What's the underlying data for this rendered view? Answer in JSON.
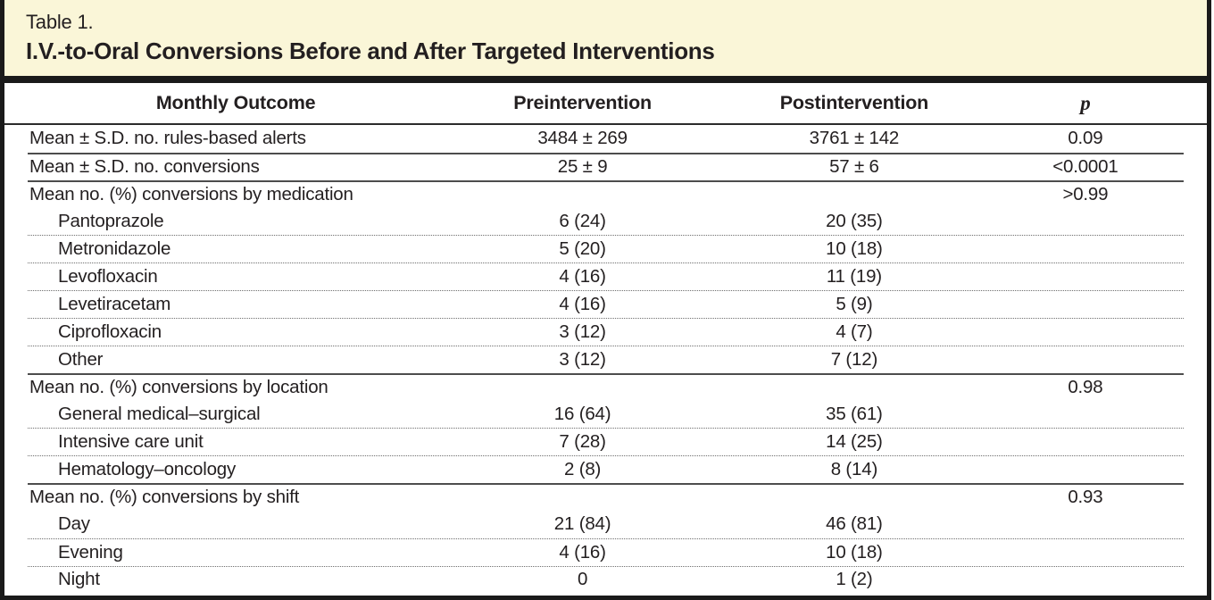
{
  "caption": {
    "label": "Table 1.",
    "title": "I.V.-to-Oral Conversions Before and After Targeted Interventions"
  },
  "columns": {
    "outcome": "Monthly Outcome",
    "pre": "Preintervention",
    "post": "Postintervention",
    "p": "p"
  },
  "rows": [
    {
      "outcome": "Mean ± S.D. no. rules-based alerts",
      "pre": "3484 ± 269",
      "post": "3761 ± 142",
      "p": "0.09",
      "indent": false,
      "sep": "none"
    },
    {
      "outcome": "Mean ± S.D. no. conversions",
      "pre": "25 ± 9",
      "post": "57 ± 6",
      "p": "<0.0001",
      "indent": false,
      "sep": "solid"
    },
    {
      "outcome": "Mean no. (%) conversions by medication",
      "pre": "",
      "post": "",
      "p": ">0.99",
      "indent": false,
      "sep": "solid"
    },
    {
      "outcome": "Pantoprazole",
      "pre": "6 (24)",
      "post": "20 (35)",
      "p": "",
      "indent": true,
      "sep": "none"
    },
    {
      "outcome": "Metronidazole",
      "pre": "5 (20)",
      "post": "10 (18)",
      "p": "",
      "indent": true,
      "sep": "dotted"
    },
    {
      "outcome": "Levofloxacin",
      "pre": "4 (16)",
      "post": "11 (19)",
      "p": "",
      "indent": true,
      "sep": "dotted"
    },
    {
      "outcome": "Levetiracetam",
      "pre": "4 (16)",
      "post": "5 (9)",
      "p": "",
      "indent": true,
      "sep": "dotted"
    },
    {
      "outcome": "Ciprofloxacin",
      "pre": "3 (12)",
      "post": "4 (7)",
      "p": "",
      "indent": true,
      "sep": "dotted"
    },
    {
      "outcome": "Other",
      "pre": "3 (12)",
      "post": "7 (12)",
      "p": "",
      "indent": true,
      "sep": "dotted"
    },
    {
      "outcome": "Mean no. (%) conversions by location",
      "pre": "",
      "post": "",
      "p": "0.98",
      "indent": false,
      "sep": "solid"
    },
    {
      "outcome": "General medical–surgical",
      "pre": "16 (64)",
      "post": "35 (61)",
      "p": "",
      "indent": true,
      "sep": "none"
    },
    {
      "outcome": "Intensive care unit",
      "pre": "7 (28)",
      "post": "14 (25)",
      "p": "",
      "indent": true,
      "sep": "dotted"
    },
    {
      "outcome": "Hematology–oncology",
      "pre": "2 (8)",
      "post": "8 (14)",
      "p": "",
      "indent": true,
      "sep": "dotted"
    },
    {
      "outcome": "Mean no. (%) conversions by shift",
      "pre": "",
      "post": "",
      "p": "0.93",
      "indent": false,
      "sep": "solid"
    },
    {
      "outcome": "Day",
      "pre": "21 (84)",
      "post": "46 (81)",
      "p": "",
      "indent": true,
      "sep": "none"
    },
    {
      "outcome": "Evening",
      "pre": "4 (16)",
      "post": "10 (18)",
      "p": "",
      "indent": true,
      "sep": "dotted"
    },
    {
      "outcome": "Night",
      "pre": "0",
      "post": "1 (2)",
      "p": "",
      "indent": true,
      "sep": "dotted"
    }
  ],
  "colors": {
    "caption_background": "#FAF6D8",
    "frame_black": "#1A1A1A",
    "text": "#231F20",
    "rule_solid": "#4D4D4D",
    "rule_dotted": "#6E6E6E"
  }
}
